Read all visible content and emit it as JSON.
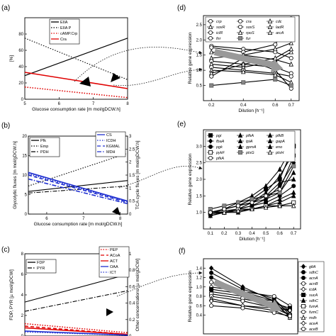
{
  "page": {
    "background": "#ffffff"
  },
  "overlay": {
    "arrow_color": "#111111"
  },
  "chart_data": [
    {
      "panel": "a",
      "panel_label": "(a)",
      "type": "line",
      "xlabel": "Glucose consumption rate  [m mol/gDCW.h]",
      "ylabel": "[%]",
      "xlim": [
        5,
        8
      ],
      "ylim": [
        0,
        100
      ],
      "xticks": [
        5,
        6,
        7,
        8
      ],
      "yticks": [
        0,
        20,
        40,
        60,
        80
      ],
      "series": [
        {
          "name": "EIIA",
          "color": "#000000",
          "style": "solid",
          "x": [
            5,
            8
          ],
          "y": [
            29,
            75
          ]
        },
        {
          "name": "EIIA P",
          "color": "#000000",
          "style": "dotted",
          "x": [
            5,
            8
          ],
          "y": [
            75,
            24
          ]
        },
        {
          "name": "cAMP.Crp",
          "color": "#e00000",
          "style": "dotted",
          "x": [
            5,
            8
          ],
          "y": [
            15,
            2
          ]
        },
        {
          "name": "Cra",
          "color": "#e00000",
          "style": "solid",
          "x": [
            5,
            8
          ],
          "y": [
            33,
            13
          ]
        }
      ]
    },
    {
      "panel": "b",
      "panel_label": "(b)",
      "type": "line",
      "xlabel": "Glucose consumption rate  [m mol/gDCW.h]",
      "ylabel": "Glycolytic fluxes  [m mol/gDCW.h]",
      "ylabel_right": "TCA cycle fluxes  [m mol/gDCW.h]",
      "xlim": [
        5.5,
        8.2
      ],
      "ylim": [
        0,
        20
      ],
      "ylim_right": [
        0,
        3
      ],
      "xticks": [
        6,
        7,
        8
      ],
      "yticks": [
        0,
        5,
        10,
        15,
        20
      ],
      "yticks_right": [
        "0",
        "0.5",
        "1",
        "1.5",
        "2",
        "2.5",
        "3"
      ],
      "series": [
        {
          "name": "Pfk",
          "color": "#000000",
          "style": "solid",
          "axis": "left",
          "x": [
            5.5,
            8.2
          ],
          "y": [
            5.8,
            8.6
          ]
        },
        {
          "name": "Emp",
          "color": "#000000",
          "style": "dotted",
          "axis": "left",
          "x": [
            5.5,
            8.2
          ],
          "y": [
            7.2,
            15.6
          ]
        },
        {
          "name": "PDH",
          "color": "#000000",
          "style": "dashdot",
          "axis": "left",
          "x": [
            5.5,
            8.2
          ],
          "y": [
            5.4,
            7.2
          ]
        },
        {
          "name": "CS",
          "color": "#1f2fd0",
          "style": "solid",
          "axis": "right",
          "x": [
            5.5,
            8.2
          ],
          "y": [
            1.6,
            0.5
          ]
        },
        {
          "name": "ICDH",
          "color": "#1f2fd0",
          "style": "dotted",
          "axis": "right",
          "x": [
            5.5,
            8.2
          ],
          "y": [
            1.55,
            0.48
          ]
        },
        {
          "name": "KGMAL",
          "color": "#1f2fd0",
          "style": "dashed",
          "axis": "right",
          "x": [
            5.5,
            8.2
          ],
          "y": [
            1.5,
            0.45
          ]
        },
        {
          "name": "MDH",
          "color": "#1f2fd0",
          "style": "dashdot",
          "axis": "right",
          "x": [
            5.5,
            8.2
          ],
          "y": [
            1.35,
            0.4
          ]
        }
      ]
    },
    {
      "panel": "c",
      "panel_label": "(c)",
      "type": "line",
      "ylabel": "FDP, PYR  [µ mol/gDCW]",
      "ylabel_right": "Other concentrations  [µ mol/gDCW]",
      "xlim": [
        5.5,
        8.2
      ],
      "ylim": [
        0,
        8
      ],
      "ylim_right": [
        0,
        1
      ],
      "yticks": [
        0,
        2,
        4,
        6,
        8
      ],
      "yticks_right": [
        "0",
        "0.2",
        "0.4",
        "0.6",
        "0.8",
        "1"
      ],
      "series": [
        {
          "name": "FDP",
          "color": "#000000",
          "style": "solid",
          "axis": "left",
          "x": [
            5.5,
            8.2
          ],
          "y": [
            3.3,
            6.0
          ]
        },
        {
          "name": "PYR",
          "color": "#000000",
          "style": "dashdot",
          "axis": "left",
          "x": [
            5.5,
            8.2
          ],
          "y": [
            2.4,
            4.4
          ]
        },
        {
          "name": "PEP",
          "color": "#e00000",
          "style": "dotted",
          "axis": "right",
          "x": [
            5.5,
            8.2
          ],
          "y": [
            0.15,
            0.04
          ]
        },
        {
          "name": "ACoA",
          "color": "#e00000",
          "style": "dashed",
          "axis": "right",
          "x": [
            5.5,
            8.2
          ],
          "y": [
            0.12,
            0.02
          ]
        },
        {
          "name": "ACT",
          "color": "#e00000",
          "style": "solid",
          "axis": "right",
          "x": [
            5.5,
            8.2
          ],
          "y": [
            0.1,
            0.02
          ]
        },
        {
          "name": "OAA",
          "color": "#1f2fd0",
          "style": "solid",
          "axis": "right",
          "x": [
            5.5,
            8.2
          ],
          "y": [
            0.06,
            0.01
          ]
        },
        {
          "name": "ICT",
          "color": "#1f2fd0",
          "style": "dotted",
          "axis": "right",
          "x": [
            5.5,
            8.2
          ],
          "y": [
            0.05,
            0.01
          ]
        }
      ]
    },
    {
      "panel": "d",
      "panel_label": "(d)",
      "type": "line",
      "xlabel": "Dilution  [h⁻¹]",
      "ylabel": "Relative gene expression",
      "xlim": [
        0.15,
        0.75
      ],
      "ylim": [
        0,
        2.8
      ],
      "xticks": [
        "0.2",
        "0.4",
        "0.6",
        "0.7"
      ],
      "xtick_values": [
        0.2,
        0.4,
        0.6,
        0.7
      ],
      "yticks": [
        "0.5",
        "1.0",
        "1.5",
        "2.0",
        "2.5"
      ],
      "ytick_values": [
        0.5,
        1.0,
        1.5,
        2.0,
        2.5
      ],
      "x": [
        0.2,
        0.4,
        0.6,
        0.7
      ],
      "legend": [
        "crp",
        "cra",
        "cdc",
        "soxR",
        "soxS",
        "ladR",
        "iclR",
        "rpoS",
        "arcA",
        "fnr",
        "fur"
      ],
      "series": [
        {
          "name": "crp",
          "marker": "circle-open",
          "y": [
            1.8,
            1.7,
            1.6,
            1.4
          ]
        },
        {
          "name": "cra",
          "marker": "circle-open",
          "y": [
            1.75,
            1.6,
            1.85,
            2.7
          ]
        },
        {
          "name": "cdc",
          "marker": "triangle-open",
          "y": [
            1.6,
            1.5,
            1.35,
            1.2
          ]
        },
        {
          "name": "soxR",
          "marker": "triangle-open",
          "y": [
            1.4,
            1.5,
            1.7,
            1.9
          ]
        },
        {
          "name": "soxS",
          "marker": "circle-open",
          "y": [
            1.3,
            1.2,
            1.1,
            0.9
          ]
        },
        {
          "name": "ladR",
          "marker": "triangle-open",
          "y": [
            1.2,
            1.1,
            1.3,
            1.6
          ]
        },
        {
          "name": "iclR",
          "marker": "circle-open",
          "y": [
            1.1,
            1.0,
            0.9,
            0.8
          ]
        },
        {
          "name": "rpoS",
          "marker": "triangle-open",
          "y": [
            1.0,
            0.95,
            0.85,
            0.6
          ]
        },
        {
          "name": "arcA",
          "marker": "triangle-open",
          "y": [
            0.9,
            1.2,
            1.4,
            1.7
          ]
        },
        {
          "name": "fnr",
          "marker": "circle-open",
          "y": [
            0.8,
            1.4,
            1.0,
            0.4
          ]
        },
        {
          "name": "fur",
          "marker": "square-gray",
          "y": [
            0.5,
            0.6,
            0.7,
            0.5
          ]
        }
      ],
      "trend_arrow": {
        "color": "#999999",
        "from": [
          0.22,
          1.6
        ],
        "to": [
          0.65,
          1.05
        ]
      }
    },
    {
      "panel": "e",
      "panel_label": "(e)",
      "type": "line",
      "xlabel": "Dilution  [h⁻¹]",
      "ylabel": "Relative gene expression",
      "xlim": [
        0.05,
        0.75
      ],
      "ylim": [
        0.5,
        3.5
      ],
      "xticks": [
        "0.1",
        "0.2",
        "0.3",
        "0.4",
        "0.5",
        "0.6",
        "0.7"
      ],
      "xtick_values": [
        0.1,
        0.2,
        0.3,
        0.4,
        0.5,
        0.6,
        0.7
      ],
      "yticks": [
        "1.0",
        "1.5",
        "2.0",
        "2.5",
        "3.0"
      ],
      "ytick_values": [
        1.0,
        1.5,
        2.0,
        2.5,
        3.0
      ],
      "x": [
        0.1,
        0.2,
        0.3,
        0.4,
        0.5,
        0.6,
        0.7
      ],
      "legend": [
        "pgi",
        "pfkA",
        "pfkB",
        "fbaA",
        "tpiA",
        "gapA",
        "pgk",
        "gpmA",
        "eno",
        "pykF",
        "ptsG",
        "ptsH",
        "pfkA"
      ],
      "series": [
        {
          "name": "pgi",
          "marker": "square-filled",
          "y": [
            1.0,
            1.1,
            1.2,
            1.4,
            1.7,
            2.0,
            3.0
          ]
        },
        {
          "name": "pfkA",
          "marker": "triangle-filled",
          "y": [
            1.0,
            1.1,
            1.3,
            1.5,
            1.8,
            2.3,
            3.1
          ]
        },
        {
          "name": "pfkB",
          "marker": "triangle-filled",
          "y": [
            1.0,
            1.1,
            1.2,
            1.3,
            1.6,
            2.1,
            2.8
          ]
        },
        {
          "name": "fbaA",
          "marker": "diamond-filled",
          "y": [
            0.9,
            1.0,
            1.1,
            1.3,
            1.4,
            1.8,
            2.5
          ]
        },
        {
          "name": "tpiA",
          "marker": "triangle-filled",
          "y": [
            1.0,
            1.0,
            1.1,
            1.2,
            1.4,
            1.6,
            2.2
          ]
        },
        {
          "name": "gapA",
          "marker": "triangle-filled",
          "y": [
            1.0,
            1.1,
            1.2,
            1.4,
            1.5,
            1.9,
            2.0
          ]
        },
        {
          "name": "pgk",
          "marker": "circle-filled",
          "y": [
            1.0,
            1.05,
            1.1,
            1.2,
            1.3,
            1.5,
            1.8
          ]
        },
        {
          "name": "gpmA",
          "marker": "triangle-filled",
          "y": [
            0.9,
            1.0,
            1.05,
            1.1,
            1.2,
            1.4,
            1.6
          ]
        },
        {
          "name": "eno",
          "marker": "triangle-filled",
          "y": [
            0.95,
            1.0,
            1.0,
            1.1,
            1.2,
            1.3,
            1.5
          ]
        },
        {
          "name": "pykF",
          "marker": "square-open",
          "y": [
            1.0,
            1.0,
            1.1,
            1.1,
            1.2,
            1.2,
            1.3
          ]
        },
        {
          "name": "ptsG",
          "marker": "square-gray",
          "y": [
            1.1,
            1.2,
            1.3,
            1.4,
            1.5,
            1.6,
            2.4
          ]
        },
        {
          "name": "ptsH",
          "marker": "triangle-open",
          "y": [
            1.0,
            1.0,
            1.05,
            1.1,
            1.15,
            1.2,
            1.2
          ]
        },
        {
          "name": "pfkA",
          "marker": "circle-open",
          "y": [
            1.0,
            1.1,
            1.2,
            1.3,
            1.5,
            1.7,
            2.7
          ]
        }
      ]
    },
    {
      "panel": "f",
      "panel_label": "(f)",
      "type": "line",
      "ylabel": "Relative gene expression",
      "xlim": [
        0.15,
        0.75
      ],
      "ylim": [
        0,
        1.6
      ],
      "yticks": [
        "0.4",
        "0.6",
        "0.8",
        "1.0",
        "1.2",
        "1.4"
      ],
      "ytick_values": [
        0.4,
        0.6,
        0.8,
        1.0,
        1.2,
        1.4
      ],
      "x": [
        0.2,
        0.4,
        0.6,
        0.7
      ],
      "legend": [
        "gltA",
        "sdhC",
        "acnA",
        "acnB",
        "icdA",
        "sucA",
        "sdhC",
        "fumA",
        "fumC",
        "mdh",
        "aceA",
        "aceB"
      ],
      "series": [
        {
          "name": "gltA",
          "marker": "diamond-filled",
          "y": [
            1.4,
            1.0,
            0.7,
            0.35
          ]
        },
        {
          "name": "sdhC",
          "marker": "circle-filled",
          "y": [
            1.3,
            0.95,
            0.75,
            0.4
          ]
        },
        {
          "name": "acnA",
          "marker": "circle-filled",
          "y": [
            1.2,
            0.9,
            0.6,
            0.5
          ]
        },
        {
          "name": "acnB",
          "marker": "circle-open",
          "y": [
            1.1,
            0.9,
            0.8,
            0.6
          ]
        },
        {
          "name": "icdA",
          "marker": "diamond-open",
          "y": [
            1.0,
            0.9,
            0.7,
            0.5
          ]
        },
        {
          "name": "sucA",
          "marker": "square-filled",
          "y": [
            0.95,
            0.85,
            0.65,
            0.55
          ]
        },
        {
          "name": "sdhC",
          "marker": "triangle-filled",
          "y": [
            0.9,
            0.8,
            0.7,
            0.45
          ]
        },
        {
          "name": "fumA",
          "marker": "square-open",
          "y": [
            0.85,
            0.75,
            0.6,
            0.4
          ]
        },
        {
          "name": "fumC",
          "marker": "circle-open",
          "y": [
            0.8,
            0.7,
            0.55,
            0.4
          ]
        },
        {
          "name": "mdh",
          "marker": "triangle-open",
          "y": [
            0.75,
            0.6,
            0.5,
            0.35
          ]
        },
        {
          "name": "aceA",
          "marker": "diamond-open",
          "y": [
            0.7,
            0.6,
            0.55,
            0.5
          ]
        },
        {
          "name": "aceB",
          "marker": "circle-open",
          "y": [
            0.6,
            0.55,
            0.45,
            0.38
          ]
        }
      ],
      "trend_arrow": {
        "color": "#999999",
        "from": [
          0.22,
          1.1
        ],
        "to": [
          0.65,
          0.5
        ]
      }
    }
  ]
}
